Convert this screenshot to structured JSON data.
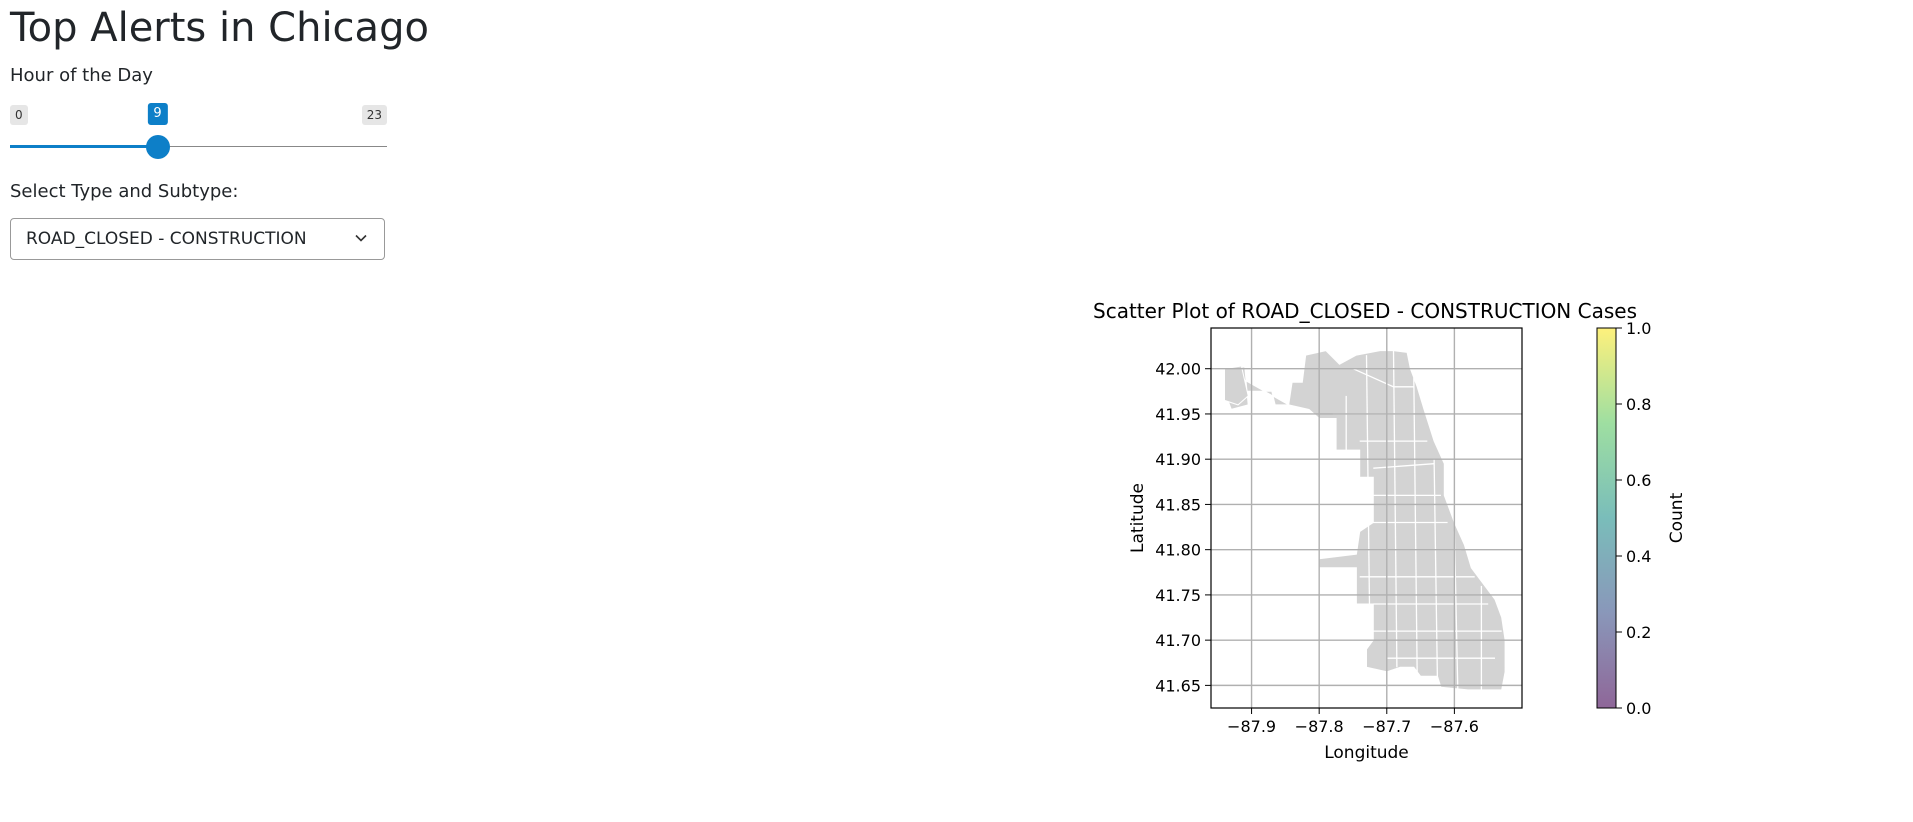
{
  "page": {
    "title": "Top Alerts in Chicago"
  },
  "hour_slider": {
    "label": "Hour of the Day",
    "min": 0,
    "max": 23,
    "value": 9,
    "min_label": "0",
    "max_label": "23",
    "value_label": "9",
    "accent_color": "#0d7fc8"
  },
  "type_select": {
    "label": "Select Type and Subtype:",
    "selected": "ROAD_CLOSED - CONSTRUCTION",
    "icon": "chevron-down-icon"
  },
  "chart_data": {
    "type": "scatter",
    "title": "Scatter Plot of ROAD_CLOSED - CONSTRUCTION Cases",
    "xlabel": "Longitude",
    "ylabel": "Latitude",
    "xlim": [
      -87.96,
      -87.5
    ],
    "ylim": [
      41.625,
      42.045
    ],
    "xticks": [
      -87.9,
      -87.8,
      -87.7,
      -87.6
    ],
    "xtick_labels": [
      "−87.9",
      "−87.8",
      "−87.7",
      "−87.6"
    ],
    "yticks": [
      41.65,
      41.7,
      41.75,
      41.8,
      41.85,
      41.9,
      41.95,
      42.0
    ],
    "ytick_labels": [
      "41.65",
      "41.70",
      "41.75",
      "41.80",
      "41.85",
      "41.90",
      "41.95",
      "42.00"
    ],
    "grid": true,
    "points": [],
    "map_fill": "#d3d3d3",
    "map_edge": "#ffffff",
    "colorbar": {
      "label": "Count",
      "min": 0.0,
      "max": 1.0,
      "ticks": [
        0.0,
        0.2,
        0.4,
        0.6,
        0.8,
        1.0
      ],
      "tick_labels": [
        "0.0",
        "0.2",
        "0.4",
        "0.6",
        "0.8",
        "1.0"
      ],
      "colormap": "viridis",
      "alpha": 0.6
    }
  }
}
